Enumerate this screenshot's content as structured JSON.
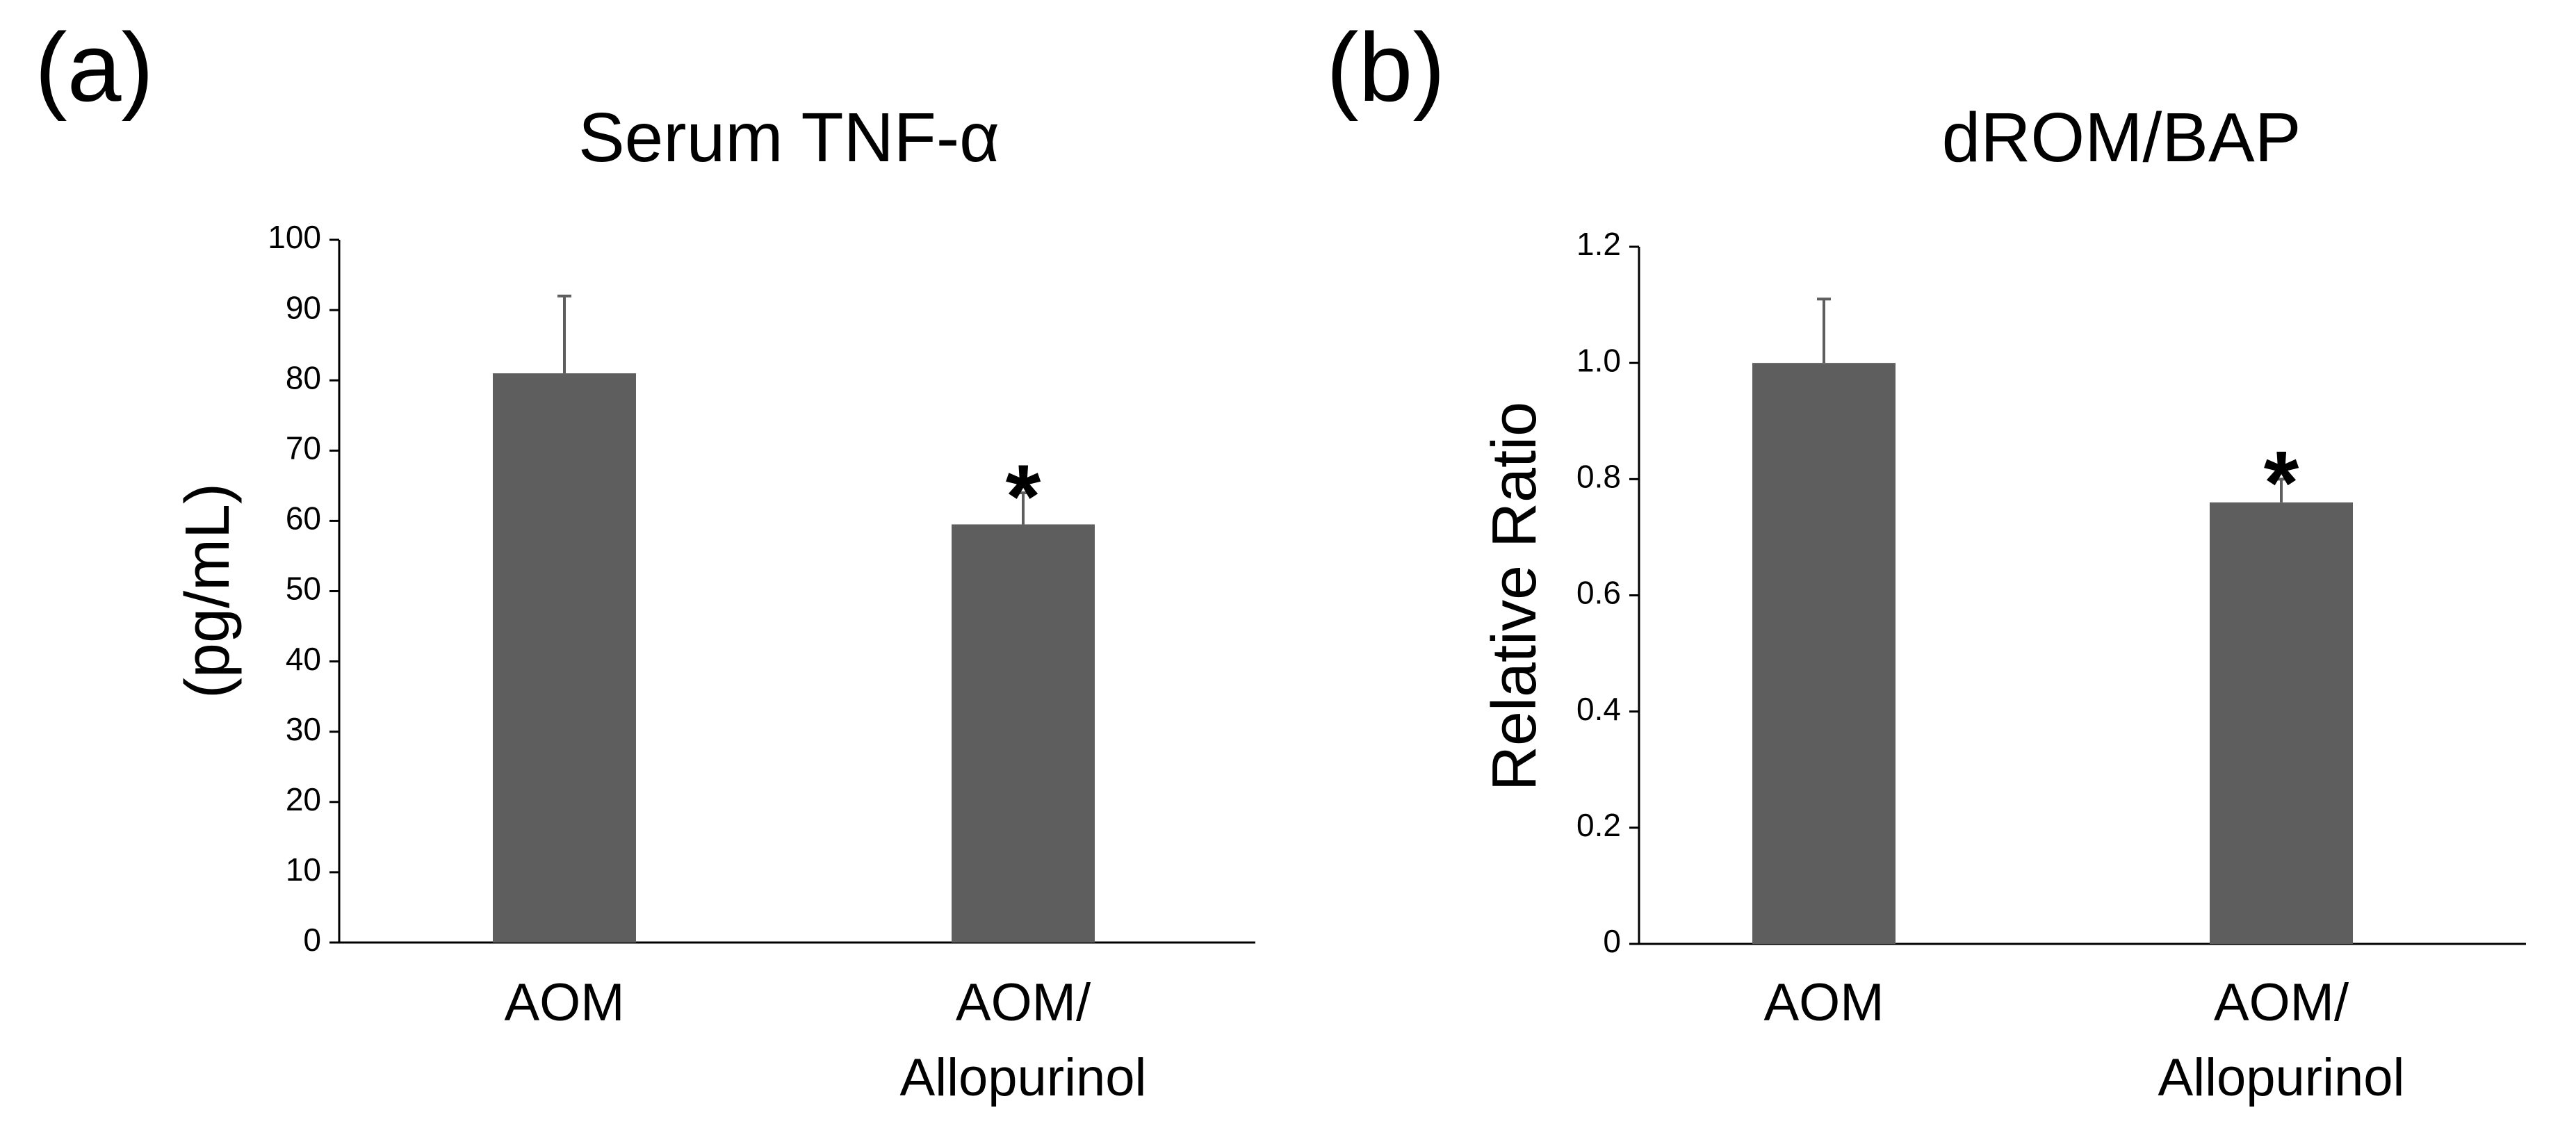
{
  "chart_data": [
    {
      "panel": "(a)",
      "type": "bar",
      "title": "Serum TNF-α",
      "xlabel": "",
      "ylabel": "(pg/mL)",
      "ylim": [
        0,
        100
      ],
      "yticks": [
        0,
        10,
        20,
        30,
        40,
        50,
        60,
        70,
        80,
        90,
        100
      ],
      "ytick_labels": [
        "0",
        "10",
        "20",
        "30",
        "40",
        "50",
        "60",
        "70",
        "80",
        "90",
        "100"
      ],
      "categories": [
        {
          "lines": [
            "AOM"
          ]
        },
        {
          "lines": [
            "AOM/",
            "Allopurinol"
          ]
        }
      ],
      "values": [
        81,
        59.5
      ],
      "errors": [
        11,
        4.5
      ],
      "significance": [
        "",
        "*"
      ],
      "bar_color": "#5e5e5e",
      "grid": false,
      "legend": "none"
    },
    {
      "panel": "(b)",
      "type": "bar",
      "title": "dROM/BAP",
      "xlabel": "",
      "ylabel": "Relative Ratio",
      "ylim": [
        0,
        1.2
      ],
      "yticks": [
        0,
        0.2,
        0.4,
        0.6,
        0.8,
        1.0,
        1.2
      ],
      "ytick_labels": [
        "0",
        "0.2",
        "0.4",
        "0.6",
        "0.8",
        "1.0",
        "1.2"
      ],
      "categories": [
        {
          "lines": [
            "AOM"
          ]
        },
        {
          "lines": [
            "AOM/",
            "Allopurinol"
          ]
        }
      ],
      "values": [
        1.0,
        0.76
      ],
      "errors": [
        0.11,
        0.04
      ],
      "significance": [
        "",
        "*"
      ],
      "bar_color": "#5e5e5e",
      "grid": false,
      "legend": "none"
    }
  ],
  "colors": {
    "bar": "#5e5e5e",
    "error_bar": "#5e5e5e",
    "axis": "#000000",
    "text": "#000000"
  }
}
